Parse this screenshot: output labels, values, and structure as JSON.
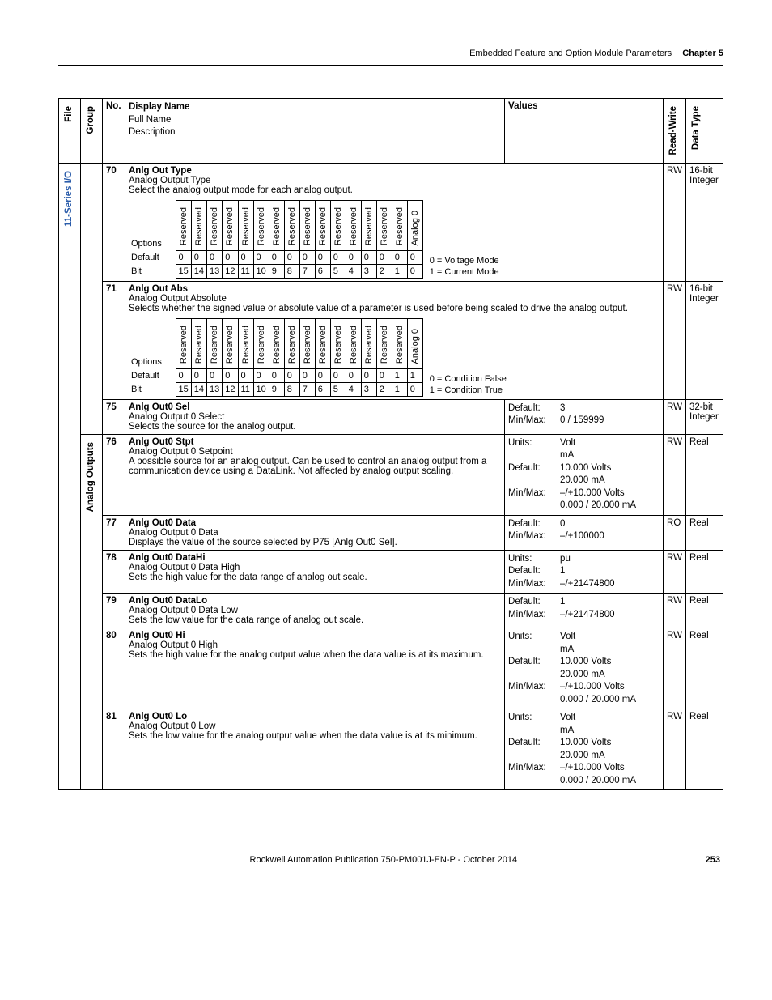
{
  "header": {
    "section": "Embedded Feature and Option Module Parameters",
    "chapter": "Chapter 5"
  },
  "columns": {
    "file": "File",
    "group": "Group",
    "no": "No.",
    "displayBlock": {
      "display": "Display Name",
      "full": "Full Name",
      "desc": "Description"
    },
    "values": "Values",
    "rw": "Read-Write",
    "dt": "Data Type"
  },
  "fileLabel": "11-Series I/O",
  "groupLabel": "Analog Outputs",
  "bitTable": {
    "labels": {
      "options": "Options",
      "default": "Default",
      "bit": "Bit"
    },
    "heads": [
      "Reserved",
      "Reserved",
      "Reserved",
      "Reserved",
      "Reserved",
      "Reserved",
      "Reserved",
      "Reserved",
      "Reserved",
      "Reserved",
      "Reserved",
      "Reserved",
      "Reserved",
      "Reserved",
      "Reserved",
      "Analog 0"
    ],
    "bits": [
      "15",
      "14",
      "13",
      "12",
      "11",
      "10",
      "9",
      "8",
      "7",
      "6",
      "5",
      "4",
      "3",
      "2",
      "1",
      "0"
    ]
  },
  "rows": [
    {
      "no": "70",
      "display": "Anlg Out Type",
      "full": "Analog Output Type",
      "desc": "Select the analog output mode for each analog output.",
      "defaults": [
        "0",
        "0",
        "0",
        "0",
        "0",
        "0",
        "0",
        "0",
        "0",
        "0",
        "0",
        "0",
        "0",
        "0",
        "0",
        "0"
      ],
      "note": [
        "0 = Voltage Mode",
        "1 = Current Mode"
      ],
      "rw": "RW",
      "dt": "16-bit Integer",
      "hasBits": true
    },
    {
      "no": "71",
      "display": "Anlg Out Abs",
      "full": "Analog Output Absolute",
      "desc": "Selects whether the signed value or absolute value of a parameter is used before being scaled to drive the analog output.",
      "defaults": [
        "0",
        "0",
        "0",
        "0",
        "0",
        "0",
        "0",
        "0",
        "0",
        "0",
        "0",
        "0",
        "0",
        "0",
        "1",
        "1"
      ],
      "note": [
        "0 = Condition False",
        "1 = Condition True"
      ],
      "rw": "RW",
      "dt": "16-bit Integer",
      "hasBits": true
    },
    {
      "no": "75",
      "display": "Anlg Out0 Sel",
      "full": "Analog Output 0 Select",
      "desc": "Selects the source for the analog output.",
      "values": [
        [
          "Default:",
          "3"
        ],
        [
          "Min/Max:",
          "0 / 159999"
        ]
      ],
      "rw": "RW",
      "dt": "32-bit Integer"
    },
    {
      "no": "76",
      "display": "Anlg Out0 Stpt",
      "full": "Analog Output 0 Setpoint",
      "desc": "A possible source for an analog output. Can be used to control an analog output from a communication device using a DataLink. Not affected by analog output scaling.",
      "values": [
        [
          "Units:",
          "Volt\nmA"
        ],
        [
          "Default:",
          "10.000 Volts\n20.000 mA"
        ],
        [
          "Min/Max:",
          "–/+10.000 Volts\n0.000 / 20.000 mA"
        ]
      ],
      "rw": "RW",
      "dt": "Real"
    },
    {
      "no": "77",
      "display": "Anlg Out0 Data",
      "full": "Analog Output 0 Data",
      "desc": "Displays the value of the source selected by P75 [Anlg Out0 Sel].",
      "values": [
        [
          "Default:",
          "0"
        ],
        [
          "Min/Max:",
          "–/+100000"
        ]
      ],
      "rw": "RO",
      "dt": "Real"
    },
    {
      "no": "78",
      "display": "Anlg Out0 DataHi",
      "full": "Analog Output 0 Data High",
      "desc": "Sets the high value for the data range of analog out scale.",
      "values": [
        [
          "Units:",
          "pu"
        ],
        [
          "Default:",
          "1"
        ],
        [
          "Min/Max:",
          "–/+21474800"
        ]
      ],
      "rw": "RW",
      "dt": "Real"
    },
    {
      "no": "79",
      "display": "Anlg Out0 DataLo",
      "full": "Analog Output 0 Data Low",
      "desc": "Sets the low value for the data range of analog out scale.",
      "values": [
        [
          "Default:",
          "1"
        ],
        [
          "Min/Max:",
          "–/+21474800"
        ]
      ],
      "rw": "RW",
      "dt": "Real"
    },
    {
      "no": "80",
      "display": "Anlg Out0 Hi",
      "full": "Analog Output 0 High",
      "desc": "Sets the high value for the analog output value when the data value is at its maximum.",
      "values": [
        [
          "Units:",
          "Volt\nmA"
        ],
        [
          "Default:",
          "10.000 Volts\n20.000 mA"
        ],
        [
          "Min/Max:",
          "–/+10.000 Volts\n0.000 / 20.000 mA"
        ]
      ],
      "rw": "RW",
      "dt": "Real"
    },
    {
      "no": "81",
      "display": "Anlg Out0 Lo",
      "full": "Analog Output 0 Low",
      "desc": "Sets the low value for the analog output value when the data value is at its minimum.",
      "values": [
        [
          "Units:",
          "Volt\nmA"
        ],
        [
          "Default:",
          "10.000 Volts\n20.000 mA"
        ],
        [
          "Min/Max:",
          "–/+10.000 Volts\n0.000 / 20.000 mA"
        ]
      ],
      "rw": "RW",
      "dt": "Real"
    }
  ],
  "footer": {
    "pub": "Rockwell Automation Publication 750-PM001J-EN-P - October 2014",
    "page": "253"
  }
}
